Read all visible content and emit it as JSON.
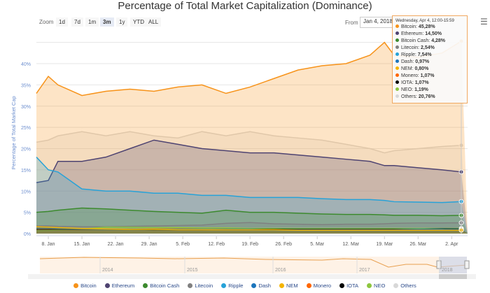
{
  "chart_data": {
    "type": "area",
    "title": "Percentage of Total Market Capitalization (Dominance)",
    "ylabel": "Percentage of Total Market Cap",
    "ylim": [
      0,
      45
    ],
    "yticks": [
      "0%",
      "5%",
      "10%",
      "15%",
      "20%",
      "25%",
      "30%",
      "35%",
      "40%"
    ],
    "xticks": [
      "8. Jan",
      "15. Jan",
      "22. Jan",
      "29. Jan",
      "5. Feb",
      "12. Feb",
      "19. Feb",
      "26. Feb",
      "5. Mar",
      "12. Mar",
      "19. Mar",
      "26. Mar",
      "2. Apr"
    ],
    "x": [
      "Jan 5",
      "Jan 8",
      "Jan 10",
      "Jan 15",
      "Jan 20",
      "Jan 25",
      "Jan 30",
      "Feb 4",
      "Feb 9",
      "Feb 14",
      "Feb 19",
      "Feb 24",
      "Mar 1",
      "Mar 6",
      "Mar 11",
      "Mar 16",
      "Mar 19",
      "Mar 21",
      "Mar 26",
      "Mar 31",
      "Apr 4"
    ],
    "grid": true,
    "legend_position": "bottom",
    "series": [
      {
        "name": "Others",
        "color": "#d8d8d8",
        "values": [
          21.5,
          22,
          23,
          24,
          23,
          24,
          23,
          22.5,
          24,
          23,
          24,
          23,
          22.5,
          22,
          21,
          20,
          19,
          19.5,
          20,
          20.5,
          20.76
        ]
      },
      {
        "name": "Bitcoin",
        "color": "#f7931a",
        "values": [
          33,
          37,
          35,
          32.5,
          33.5,
          34,
          33.5,
          34.5,
          35,
          33,
          34.5,
          36.5,
          38.5,
          39.5,
          40,
          42,
          45,
          42,
          41.5,
          42.5,
          45.28
        ]
      },
      {
        "name": "Ethereum",
        "color": "#4e4371",
        "values": [
          12,
          12.5,
          17,
          17,
          18,
          20,
          22,
          21,
          20,
          19.5,
          19,
          19,
          18.5,
          18,
          17.5,
          17,
          16,
          16,
          15.5,
          15,
          14.5
        ]
      },
      {
        "name": "Ripple",
        "color": "#27a2d8",
        "values": [
          18,
          15,
          14.5,
          10.5,
          10,
          10,
          9.5,
          9.5,
          9,
          9,
          8.5,
          8.5,
          8.5,
          8.2,
          8,
          8,
          7.8,
          7.5,
          7.4,
          7.3,
          7.54
        ]
      },
      {
        "name": "Bitcoin Cash",
        "color": "#3c8a2e",
        "values": [
          5,
          5.2,
          5.5,
          6,
          5.8,
          5.5,
          5.2,
          5,
          4.8,
          5.5,
          5,
          5,
          4.8,
          4.6,
          4.5,
          4.5,
          4.4,
          4.3,
          4.3,
          4.2,
          4.28
        ]
      },
      {
        "name": "Litecoin",
        "color": "#808080",
        "values": [
          1.8,
          1.8,
          1.7,
          1.6,
          1.6,
          1.7,
          1.8,
          1.9,
          2,
          2.4,
          2.6,
          2.3,
          2.2,
          2.1,
          2.2,
          2.2,
          2.3,
          2.4,
          2.5,
          2.5,
          2.54
        ]
      },
      {
        "name": "Monero",
        "color": "#ff6600",
        "values": [
          1.2,
          1.2,
          1.1,
          1.1,
          1,
          1,
          1.1,
          1.1,
          1.1,
          1.2,
          1.1,
          1.1,
          1.1,
          1.1,
          1.1,
          1.1,
          1.1,
          1.1,
          1.1,
          1.1,
          1.07
        ]
      },
      {
        "name": "NEO",
        "color": "#8dc63f",
        "values": [
          0.6,
          0.7,
          0.8,
          1.1,
          1.5,
          1.5,
          1.4,
          1.4,
          1.3,
          1.3,
          1.2,
          1.2,
          1.2,
          1.2,
          1.2,
          1.2,
          1.2,
          1.2,
          1.2,
          1.2,
          1.19
        ]
      },
      {
        "name": "IOTA",
        "color": "#000000",
        "values": [
          1,
          1,
          1,
          1,
          1,
          1,
          0.9,
          0.9,
          0.9,
          1,
          1,
          1,
          1,
          1,
          1,
          1,
          1,
          1,
          1,
          1.1,
          1.07
        ]
      },
      {
        "name": "Dash",
        "color": "#1c75bc",
        "values": [
          1.3,
          1.3,
          1.2,
          1.1,
          1,
          1,
          1,
          1,
          1,
          1,
          1,
          0.9,
          0.9,
          0.9,
          0.9,
          0.9,
          0.9,
          0.9,
          1,
          1,
          0.97
        ]
      },
      {
        "name": "NEM",
        "color": "#f4b400",
        "values": [
          1.6,
          1.5,
          1.4,
          1.2,
          1.1,
          1,
          1,
          0.9,
          0.9,
          0.9,
          0.9,
          0.9,
          0.8,
          0.8,
          0.8,
          0.8,
          0.8,
          0.8,
          0.8,
          0.8,
          0.8
        ]
      }
    ]
  },
  "toolbar": {
    "zoom_label": "Zoom",
    "zoom_buttons": [
      "1d",
      "7d",
      "1m",
      "3m",
      "1y",
      "YTD",
      "ALL"
    ],
    "selected": "3m",
    "from_label": "From",
    "from_value": "Jan 4, 2018"
  },
  "tooltip": {
    "header": "Wednesday, Apr 4, 12:00-15:59",
    "items": [
      {
        "name": "Bitcoin",
        "value": "45,28%",
        "color": "#f7931a"
      },
      {
        "name": "Ethereum",
        "value": "14,50%",
        "color": "#4e4371"
      },
      {
        "name": "Bitcoin Cash",
        "value": "4,28%",
        "color": "#3c8a2e"
      },
      {
        "name": "Litecoin",
        "value": "2,54%",
        "color": "#808080"
      },
      {
        "name": "Ripple",
        "value": "7,54%",
        "color": "#27a2d8"
      },
      {
        "name": "Dash",
        "value": "0,97%",
        "color": "#1c75bc"
      },
      {
        "name": "NEM",
        "value": "0,80%",
        "color": "#f4b400"
      },
      {
        "name": "Monero",
        "value": "1,07%",
        "color": "#ff6600"
      },
      {
        "name": "IOTA",
        "value": "1,07%",
        "color": "#000000"
      },
      {
        "name": "NEO",
        "value": "1,19%",
        "color": "#8dc63f"
      },
      {
        "name": "Others",
        "value": "20,76%",
        "color": "#d8d8d8"
      }
    ]
  },
  "navigator": {
    "years": [
      "2014",
      "2015",
      "2016",
      "2017",
      "2018"
    ]
  },
  "legend": [
    {
      "name": "Bitcoin",
      "color": "#f7931a"
    },
    {
      "name": "Ethereum",
      "color": "#4e4371"
    },
    {
      "name": "Bitcoin Cash",
      "color": "#3c8a2e"
    },
    {
      "name": "Litecoin",
      "color": "#808080"
    },
    {
      "name": "Ripple",
      "color": "#27a2d8"
    },
    {
      "name": "Dash",
      "color": "#1c75bc"
    },
    {
      "name": "NEM",
      "color": "#f4b400"
    },
    {
      "name": "Monero",
      "color": "#ff6600"
    },
    {
      "name": "IOTA",
      "color": "#000000"
    },
    {
      "name": "NEO",
      "color": "#8dc63f"
    },
    {
      "name": "Others",
      "color": "#d8d8d8"
    }
  ]
}
